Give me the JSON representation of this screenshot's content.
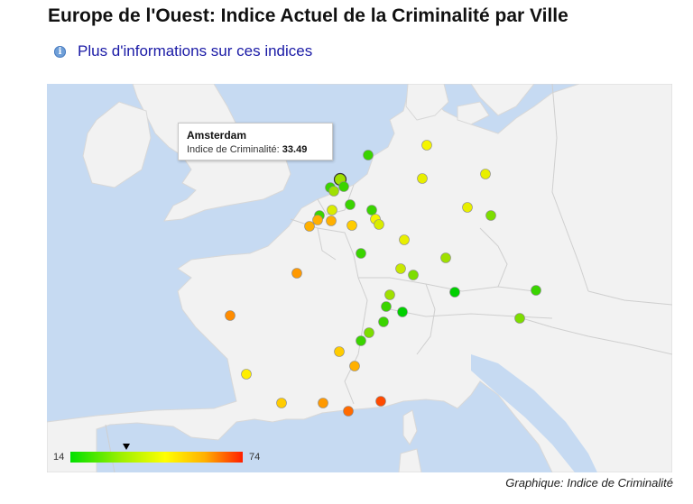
{
  "header": {
    "title": "Europe de l'Ouest: Indice Actuel de la Criminalité par Ville",
    "info_link": "Plus d'informations sur ces indices"
  },
  "icons": {
    "info": "info-circle-icon"
  },
  "tooltip": {
    "city": "Amsterdam",
    "label": "Indice de Criminalité:",
    "value": "33.49"
  },
  "legend": {
    "min": "14",
    "max": "74",
    "colors": [
      "#00e000",
      "#a0f000",
      "#ffff00",
      "#ffb000",
      "#ff1e00"
    ],
    "selected_value": 33.49
  },
  "caption": "Graphique: Indice de Criminalité",
  "colors": {
    "land": "#f2f2f2",
    "sea": "#c6daf2",
    "border": "#cfcfcf",
    "link": "#1a1aa6"
  }
}
